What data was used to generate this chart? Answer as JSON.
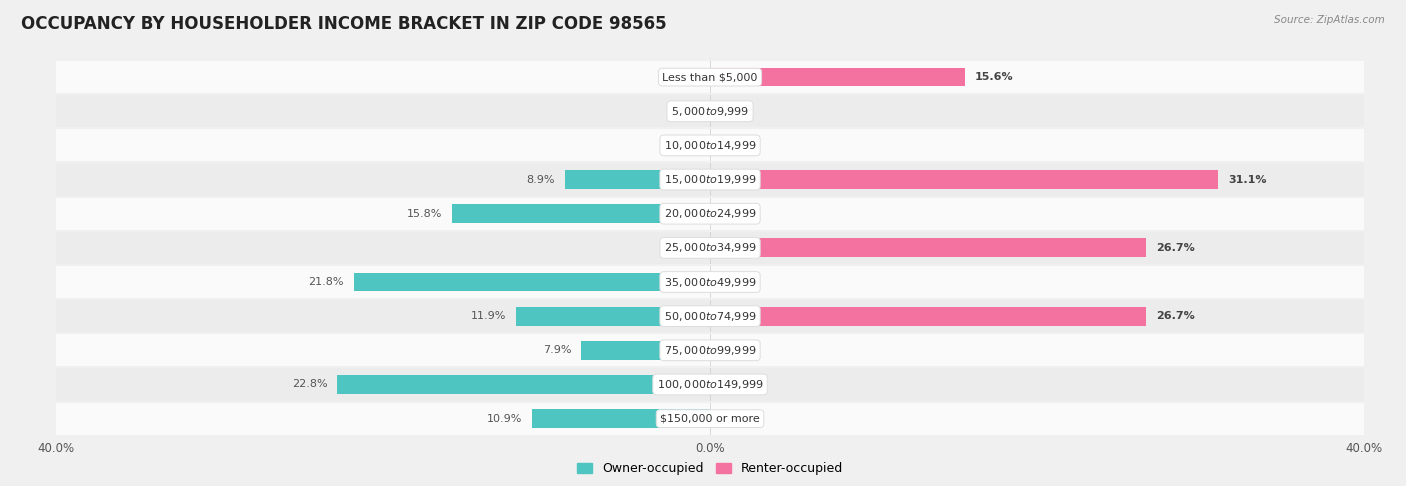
{
  "title": "OCCUPANCY BY HOUSEHOLDER INCOME BRACKET IN ZIP CODE 98565",
  "source": "Source: ZipAtlas.com",
  "categories": [
    "Less than $5,000",
    "$5,000 to $9,999",
    "$10,000 to $14,999",
    "$15,000 to $19,999",
    "$20,000 to $24,999",
    "$25,000 to $34,999",
    "$35,000 to $49,999",
    "$50,000 to $74,999",
    "$75,000 to $99,999",
    "$100,000 to $149,999",
    "$150,000 or more"
  ],
  "owner_values": [
    0.0,
    0.0,
    0.0,
    8.9,
    15.8,
    0.0,
    21.8,
    11.9,
    7.9,
    22.8,
    10.9
  ],
  "renter_values": [
    15.6,
    0.0,
    0.0,
    31.1,
    0.0,
    26.7,
    0.0,
    26.7,
    0.0,
    0.0,
    0.0
  ],
  "owner_color": "#4EC5C1",
  "renter_color": "#F472A0",
  "owner_label": "Owner-occupied",
  "renter_label": "Renter-occupied",
  "xlim": [
    -40,
    40
  ],
  "bar_height": 0.55,
  "background_color": "#f0f0f0",
  "row_colors": [
    "#fafafa",
    "#ececec"
  ],
  "title_fontsize": 12,
  "label_fontsize": 8,
  "category_fontsize": 8,
  "axis_label_fontsize": 8.5,
  "bold_renter_threshold": 1.0
}
